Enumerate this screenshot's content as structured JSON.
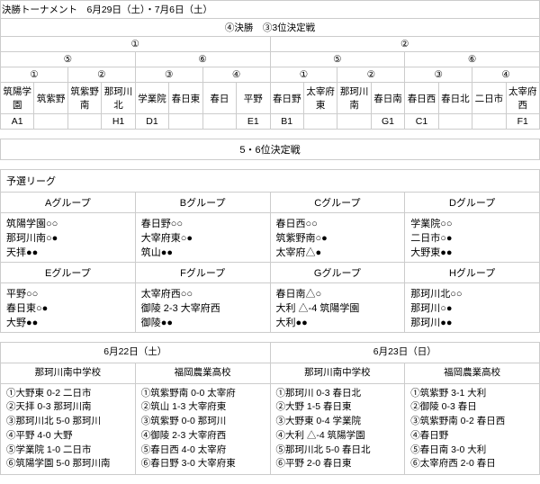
{
  "tournament": {
    "title": "決勝トーナメント　6月29日（土）・7月6日（土）",
    "final_row": "④決勝　③3位決定戦",
    "semis": [
      "①",
      "②"
    ],
    "quarters": [
      "⑤",
      "⑥",
      "⑤",
      "⑥"
    ],
    "r16": [
      "①",
      "②",
      "③",
      "④",
      "①",
      "②",
      "③",
      "④"
    ],
    "teams": [
      "筑陽学園",
      "筑紫野",
      "筑紫野南",
      "那珂川北",
      "学業院",
      "春日東",
      "春日",
      "平野",
      "春日野",
      "太宰府東",
      "那珂川南",
      "春日南",
      "春日西",
      "春日北",
      "二日市",
      "太宰府西"
    ],
    "codes": [
      "A1",
      "",
      "",
      "H1",
      "D1",
      "",
      "",
      "E1",
      "B1",
      "",
      "",
      "G1",
      "C1",
      "",
      "",
      "F1"
    ],
    "consolation": "5・6位決定戦"
  },
  "prelim": {
    "title": "予選リーグ",
    "groups": [
      {
        "name": "Aグループ",
        "rows": [
          "筑陽学園○○",
          "那珂川南○●",
          "天拝●●"
        ]
      },
      {
        "name": "Bグループ",
        "rows": [
          "春日野○○",
          "大宰府東○●",
          "筑山●●"
        ]
      },
      {
        "name": "Cグループ",
        "rows": [
          "春日西○○",
          "筑紫野南○●",
          "太宰府△●"
        ]
      },
      {
        "name": "Dグループ",
        "rows": [
          "学業院○○",
          "二日市○●",
          "大野東●●"
        ]
      },
      {
        "name": "Eグループ",
        "rows": [
          "平野○○",
          "春日東○●",
          "大野●●"
        ]
      },
      {
        "name": "Fグループ",
        "rows": [
          "太宰府西○○",
          "御陵 2-3 大宰府西",
          "御陵●●"
        ]
      },
      {
        "name": "Gグループ",
        "rows": [
          "春日南△○",
          "大利 △-4 筑陽学園",
          "大利●●"
        ]
      },
      {
        "name": "Hグループ",
        "rows": [
          "那珂川北○○",
          "那珂川○●",
          "那珂川●●"
        ]
      }
    ]
  },
  "schedule": {
    "days": [
      "6月22日（土）",
      "6月23日（日）"
    ],
    "venues": [
      "那珂川南中学校",
      "福岡農業高校",
      "那珂川南中学校",
      "福岡農業高校"
    ],
    "cols": [
      [
        "①大野東 0-2 二日市",
        "②天拝 0-3 那珂川南",
        "③那珂川北 5-0 那珂川",
        "④平野 4-0 大野",
        "⑤学業院 1-0 二日市",
        "⑥筑陽学園 5-0 那珂川南"
      ],
      [
        "①筑紫野南 0-0 太宰府",
        "②筑山 1-3 大宰府東",
        "③筑紫野 0-0 那珂川",
        "④御陵 2-3 大宰府西",
        "⑤春日西 4-0 太宰府",
        "⑥春日野 3-0 大宰府東"
      ],
      [
        "①那珂川 0-3 春日北",
        "②大野 1-5 春日東",
        "③大野東 0-4 学業院",
        "④大利 △-4 筑陽学園",
        "⑤那珂川北 5-0 春日北",
        "⑥平野 2-0 春日東"
      ],
      [
        "①筑紫野 3-1 大利",
        "②御陵 0-3 春日",
        "③筑紫野南 0-2 春日西",
        "④春日野 ",
        "⑤春日南 3-0 大利",
        "⑥太宰府西 2-0 春日"
      ]
    ]
  }
}
